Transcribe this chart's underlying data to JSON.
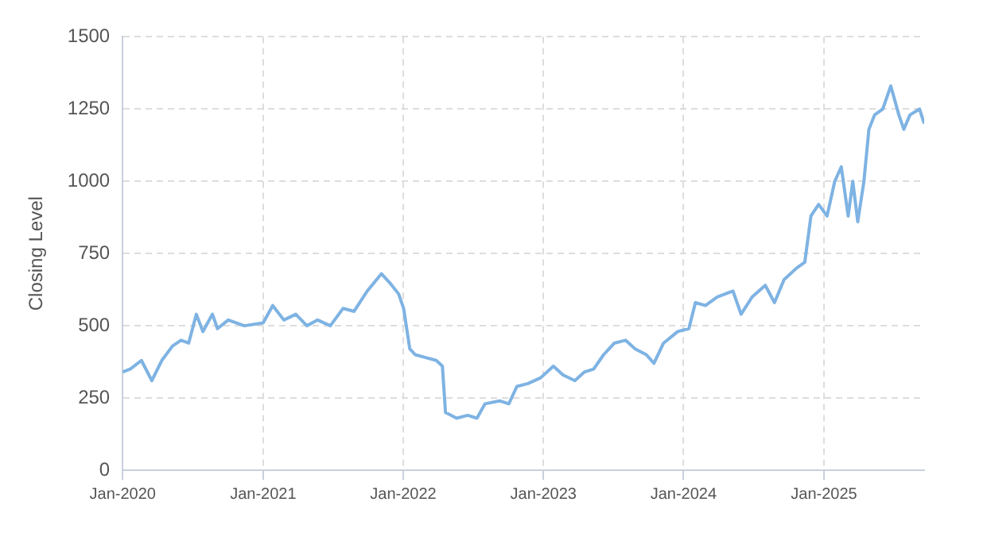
{
  "chart_data": {
    "type": "line",
    "ylabel": "Closing Level",
    "x": [
      "2020-01-01",
      "2020-01-21",
      "2020-02-19",
      "2020-03-17",
      "2020-04-12",
      "2020-05-10",
      "2020-06-01",
      "2020-06-21",
      "2020-06-29",
      "2020-07-11",
      "2020-07-28",
      "2020-08-22",
      "2020-09-04",
      "2020-10-02",
      "2020-11-13",
      "2021-01-01",
      "2021-01-26",
      "2021-02-24",
      "2021-03-27",
      "2021-04-25",
      "2021-05-23",
      "2021-06-25",
      "2021-07-28",
      "2021-08-26",
      "2021-09-29",
      "2021-11-05",
      "2021-11-26",
      "2021-12-20",
      "2022-01-02",
      "2022-01-18",
      "2022-02-01",
      "2022-02-28",
      "2022-03-28",
      "2022-04-13",
      "2022-04-21",
      "2022-05-20",
      "2022-06-18",
      "2022-07-12",
      "2022-08-02",
      "2022-09-09",
      "2022-10-03",
      "2022-10-24",
      "2022-11-22",
      "2022-12-25",
      "2023-01-27",
      "2023-02-21",
      "2023-03-24",
      "2023-04-18",
      "2023-05-12",
      "2023-06-07",
      "2023-07-05",
      "2023-08-03",
      "2023-08-28",
      "2023-09-26",
      "2023-10-16",
      "2023-11-10",
      "2023-12-17",
      "2024-01-15",
      "2024-02-01",
      "2024-02-27",
      "2024-03-29",
      "2024-05-09",
      "2024-05-30",
      "2024-06-28",
      "2024-08-01",
      "2024-08-25",
      "2024-09-19",
      "2024-10-22",
      "2024-11-12",
      "2024-11-28",
      "2024-12-18",
      "2025-01-09",
      "2025-01-29",
      "2025-02-15",
      "2025-03-05",
      "2025-03-17",
      "2025-03-30",
      "2025-04-15",
      "2025-04-28",
      "2025-05-13",
      "2025-06-03",
      "2025-06-24",
      "2025-07-15",
      "2025-07-28",
      "2025-08-13",
      "2025-09-07",
      "2025-09-19"
    ],
    "series": [
      {
        "color": "#7eb3e3",
        "values": [
          340,
          350,
          380,
          310,
          380,
          430,
          450,
          440,
          480,
          540,
          480,
          540,
          490,
          520,
          500,
          510,
          570,
          520,
          540,
          500,
          520,
          500,
          560,
          550,
          620,
          680,
          650,
          610,
          560,
          420,
          400,
          390,
          380,
          360,
          200,
          180,
          190,
          180,
          230,
          240,
          230,
          290,
          300,
          320,
          360,
          330,
          310,
          340,
          350,
          400,
          440,
          450,
          420,
          400,
          370,
          440,
          480,
          490,
          580,
          570,
          600,
          620,
          540,
          600,
          640,
          580,
          660,
          700,
          720,
          880,
          920,
          880,
          1000,
          1050,
          880,
          1000,
          860,
          1000,
          1180,
          1230,
          1250,
          1330,
          1230,
          1180,
          1230,
          1250,
          1200
        ]
      }
    ],
    "xlim": [
      "2020-01-01",
      "2025-09-19"
    ],
    "xticks": [
      {
        "value": "2020-01-01",
        "label": "Jan-2020"
      },
      {
        "value": "2021-01-01",
        "label": "Jan-2021"
      },
      {
        "value": "2022-01-01",
        "label": "Jan-2022"
      },
      {
        "value": "2023-01-01",
        "label": "Jan-2023"
      },
      {
        "value": "2024-01-01",
        "label": "Jan-2024"
      },
      {
        "value": "2025-01-01",
        "label": "Jan-2025"
      }
    ],
    "ylim": [
      0,
      1500
    ],
    "yticks": [
      0,
      250,
      500,
      750,
      1000,
      1250,
      1500
    ],
    "grid": true,
    "marker": "none",
    "line_style": "solid"
  }
}
